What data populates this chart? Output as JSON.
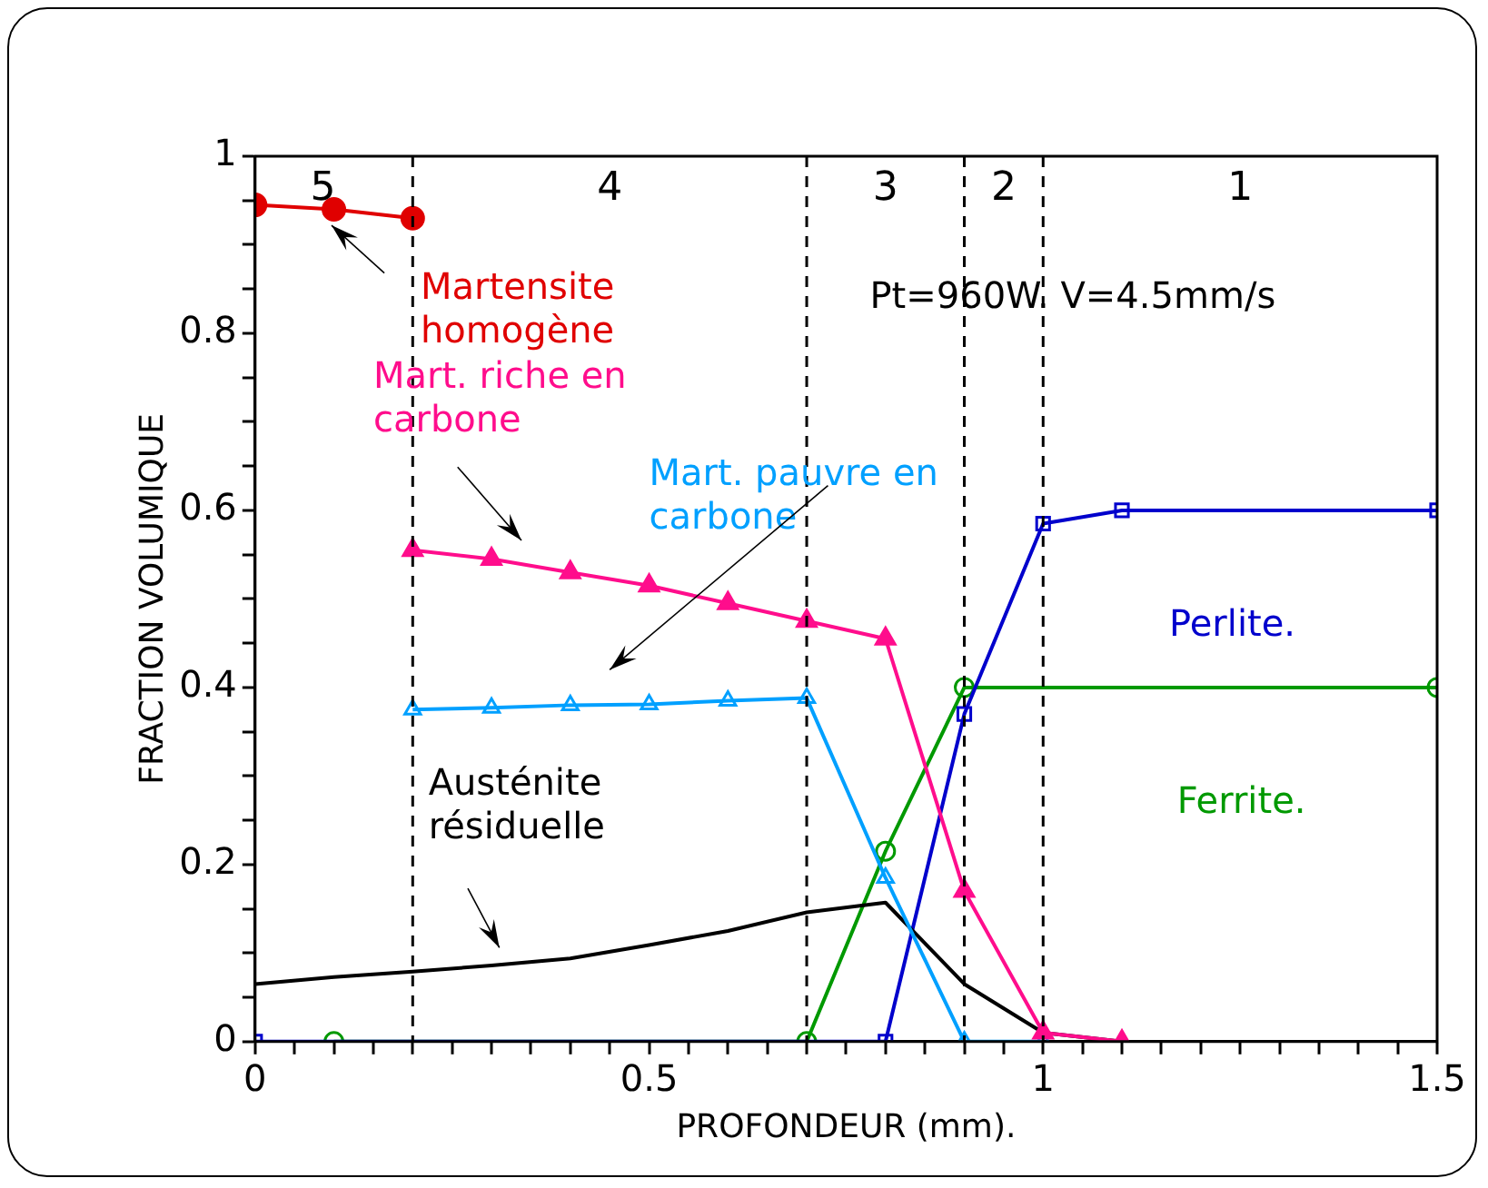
{
  "chart_data": {
    "type": "line",
    "xlabel": "PROFONDEUR (mm).",
    "ylabel": "FRACTION VOLUMIQUE",
    "xlim": [
      0,
      1.5
    ],
    "ylim": [
      0,
      1
    ],
    "xticks": [
      0,
      {
        "value": 0.05,
        "label": null
      },
      {
        "value": 0.1,
        "label": null
      },
      {
        "value": 0.15,
        "label": null
      },
      {
        "value": 0.2,
        "label": null
      },
      {
        "value": 0.25,
        "label": null
      },
      {
        "value": 0.3,
        "label": null
      },
      {
        "value": 0.35,
        "label": null
      },
      {
        "value": 0.4,
        "label": null
      },
      {
        "value": 0.45,
        "label": null
      },
      0.5,
      {
        "value": 0.55,
        "label": null
      },
      {
        "value": 0.6,
        "label": null
      },
      {
        "value": 0.65,
        "label": null
      },
      {
        "value": 0.7,
        "label": null
      },
      {
        "value": 0.75,
        "label": null
      },
      {
        "value": 0.8,
        "label": null
      },
      {
        "value": 0.85,
        "label": null
      },
      {
        "value": 0.9,
        "label": null
      },
      {
        "value": 0.95,
        "label": null
      },
      1,
      {
        "value": 1.05,
        "label": null
      },
      {
        "value": 1.1,
        "label": null
      },
      {
        "value": 1.15,
        "label": null
      },
      {
        "value": 1.2,
        "label": null
      },
      {
        "value": 1.25,
        "label": null
      },
      {
        "value": 1.3,
        "label": null
      },
      {
        "value": 1.35,
        "label": null
      },
      {
        "value": 1.4,
        "label": null
      },
      {
        "value": 1.45,
        "label": null
      },
      1.5
    ],
    "yticks": [
      0,
      {
        "value": 0.05,
        "label": null
      },
      {
        "value": 0.1,
        "label": null
      },
      {
        "value": 0.15,
        "label": null
      },
      0.2,
      {
        "value": 0.25,
        "label": null
      },
      {
        "value": 0.3,
        "label": null
      },
      {
        "value": 0.35,
        "label": null
      },
      0.4,
      {
        "value": 0.45,
        "label": null
      },
      {
        "value": 0.5,
        "label": null
      },
      {
        "value": 0.55,
        "label": null
      },
      0.6,
      {
        "value": 0.65,
        "label": null
      },
      {
        "value": 0.7,
        "label": null
      },
      {
        "value": 0.75,
        "label": null
      },
      0.8,
      {
        "value": 0.85,
        "label": null
      },
      {
        "value": 0.9,
        "label": null
      },
      {
        "value": 0.95,
        "label": null
      },
      1
    ],
    "grid": false,
    "legend": false,
    "series": [
      {
        "name": "Martensite homogène",
        "color": "#e00000",
        "marker": "circle",
        "x": [
          0,
          0.1,
          0.2
        ],
        "values": [
          0.945,
          0.94,
          0.93
        ]
      },
      {
        "name": "Mart. riche en carbone",
        "color": "#ff0d8c",
        "marker": "triangle",
        "x": [
          0.2,
          0.3,
          0.4,
          0.5,
          0.6,
          0.7,
          0.8,
          0.9,
          1.0,
          1.1
        ],
        "values": [
          0.555,
          0.545,
          0.53,
          0.515,
          0.495,
          0.475,
          0.455,
          0.17,
          0.01,
          0
        ]
      },
      {
        "name": "Mart. pauvre en carbone",
        "color": "#00a0ff",
        "marker": "triangle",
        "x": [
          0.2,
          0.3,
          0.4,
          0.5,
          0.6,
          0.7,
          0.8,
          0.9,
          1.0
        ],
        "values": [
          0.375,
          0.377,
          0.38,
          0.381,
          0.385,
          0.388,
          0.185,
          0,
          0
        ]
      },
      {
        "name": "Austénite résiduelle",
        "color": "#000000",
        "marker": "none",
        "x": [
          0,
          0.1,
          0.2,
          0.3,
          0.4,
          0.5,
          0.6,
          0.7,
          0.8,
          0.9,
          1.0,
          1.1
        ],
        "values": [
          0.065,
          0.073,
          0.079,
          0.086,
          0.094,
          0.109,
          0.125,
          0.146,
          0.157,
          0.065,
          0.01,
          0
        ]
      },
      {
        "name": "Perlite.",
        "color": "#0000cc",
        "marker": "square",
        "x": [
          0,
          0.8,
          0.9,
          1.0,
          1.1,
          1.5
        ],
        "values": [
          0,
          0,
          0.37,
          0.585,
          0.6,
          0.6
        ]
      },
      {
        "name": "Ferrite.",
        "color": "#009900",
        "marker": "circle",
        "x": [
          0.1,
          0.7,
          0.8,
          0.9,
          1.5
        ],
        "values": [
          0,
          0,
          0.215,
          0.4,
          0.4
        ]
      }
    ],
    "ref_lines": [
      {
        "axis": "x",
        "value": 0.2,
        "color": "#000000",
        "line_style": "dashed"
      },
      {
        "axis": "x",
        "value": 0.7,
        "color": "#000000",
        "line_style": "dashed"
      },
      {
        "axis": "x",
        "value": 0.9,
        "color": "#000000",
        "line_style": "dashed"
      },
      {
        "axis": "x",
        "value": 1.0,
        "color": "#000000",
        "line_style": "dashed"
      }
    ],
    "annotations": [
      "5",
      "4",
      "3",
      "2",
      "1",
      "Pt=960W. V=4.5mm/s"
    ]
  }
}
